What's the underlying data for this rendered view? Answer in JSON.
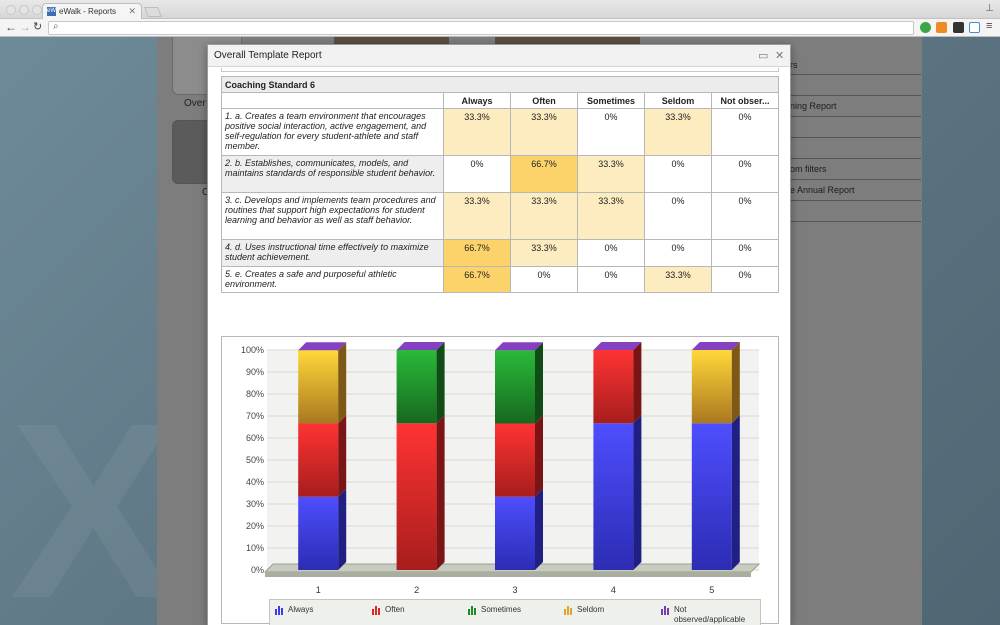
{
  "browser": {
    "tab_title": "eWalk - Reports",
    "tab_favicon": "eW",
    "accent": "#3a6fb2"
  },
  "background": {
    "overview_label": "Over",
    "partial_label_2": "C",
    "side_items": [
      "rs",
      "",
      "ning Report",
      "",
      "",
      "om filters",
      "e Annual Report",
      ""
    ]
  },
  "modal": {
    "title": "Overall Template Report",
    "maximize_icon": "window-maximize-icon",
    "close_icon": "close-icon"
  },
  "table": {
    "caption": "Coaching Standard 6",
    "columns": [
      "Always",
      "Often",
      "Sometimes",
      "Seldom",
      "Not obser..."
    ],
    "rows": [
      {
        "label": "1. a. Creates a team environment that encourages positive social interaction, active engagement, and self-regulation for every student-athlete and staff member.",
        "values": [
          "33.3%",
          "33.3%",
          "0%",
          "33.3%",
          "0%"
        ],
        "levels": [
          1,
          1,
          0,
          1,
          0
        ]
      },
      {
        "label": "2. b. Establishes, communicates, models, and maintains standards of responsible student behavior.",
        "values": [
          "0%",
          "66.7%",
          "33.3%",
          "0%",
          "0%"
        ],
        "levels": [
          0,
          2,
          1,
          0,
          0
        ]
      },
      {
        "label": "3. c. Develops and implements team procedures and routines that support high expectations for student learning and behavior as well as staff behavior.",
        "values": [
          "33.3%",
          "33.3%",
          "33.3%",
          "0%",
          "0%"
        ],
        "levels": [
          1,
          1,
          1,
          0,
          0
        ]
      },
      {
        "label": "4. d. Uses instructional time effectively to maximize student achievement.",
        "values": [
          "66.7%",
          "33.3%",
          "0%",
          "0%",
          "0%"
        ],
        "levels": [
          2,
          1,
          0,
          0,
          0
        ]
      },
      {
        "label": "5. e. Creates a safe and purposeful athletic environment.",
        "values": [
          "66.7%",
          "0%",
          "0%",
          "33.3%",
          "0%"
        ],
        "levels": [
          2,
          0,
          0,
          1,
          0
        ]
      }
    ],
    "cell_colors": [
      "#ffffff",
      "#fdecc0",
      "#fcd36b"
    ]
  },
  "chart_data": {
    "type": "bar",
    "stacked": true,
    "categories": [
      "1",
      "2",
      "3",
      "4",
      "5"
    ],
    "series": [
      {
        "name": "Always",
        "values": [
          33.3,
          0,
          33.3,
          66.7,
          66.7
        ],
        "color": "#3a3af0"
      },
      {
        "name": "Often",
        "values": [
          33.3,
          66.7,
          33.3,
          33.3,
          0
        ],
        "color": "#e02626"
      },
      {
        "name": "Sometimes",
        "values": [
          0,
          33.3,
          33.3,
          0,
          0
        ],
        "color": "#1f8a2a"
      },
      {
        "name": "Seldom",
        "values": [
          33.3,
          0,
          0,
          0,
          33.3
        ],
        "color": "#e3a02a"
      },
      {
        "name": "Not observed/applicable",
        "values": [
          0,
          0,
          0,
          0,
          0
        ],
        "color": "#7a3ab0"
      }
    ],
    "y_ticks": [
      "0%",
      "10%",
      "20%",
      "30%",
      "40%",
      "50%",
      "60%",
      "70%",
      "80%",
      "90%",
      "100%"
    ],
    "ylim": [
      0,
      100
    ],
    "grid": true,
    "legend_position": "bottom"
  }
}
